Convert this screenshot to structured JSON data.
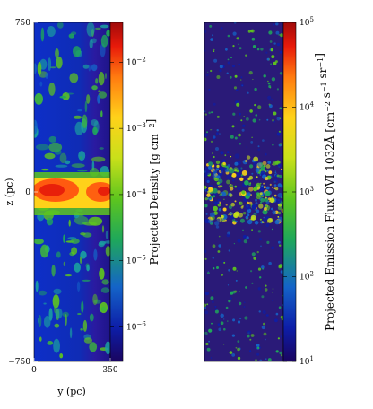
{
  "chart_data": [
    {
      "type": "heatmap",
      "panel": "left",
      "quantity": "projected density",
      "xlabel": "y (pc)",
      "ylabel": "z (pc)",
      "xlim": [
        0,
        350
      ],
      "ylim": [
        -750,
        750
      ],
      "x_ticks": [
        {
          "value": 0,
          "label": "0"
        },
        {
          "value": 350,
          "label": "350"
        }
      ],
      "y_ticks": [
        {
          "value": 750,
          "label": "750"
        },
        {
          "value": 0,
          "label": "0"
        },
        {
          "value": -750,
          "label": "-750"
        }
      ],
      "colorbar": {
        "label": "Projected Density [g cm^-2]",
        "scale": "log",
        "range": [
          3e-07,
          0.04
        ],
        "ticks": [
          {
            "value": 0.01,
            "label": "10^-2"
          },
          {
            "value": 0.001,
            "label": "10^-3"
          },
          {
            "value": 0.0001,
            "label": "10^-4"
          },
          {
            "value": 1e-05,
            "label": "10^-5"
          },
          {
            "value": 1e-06,
            "label": "10^-6"
          }
        ]
      },
      "colormap": [
        "#1a0560",
        "#0d1ea8",
        "#1464c8",
        "#1fa85a",
        "#5ec51e",
        "#c9e01a",
        "#ffd21a",
        "#ff7a10",
        "#e81a0a",
        "#a00a0a"
      ]
    },
    {
      "type": "heatmap",
      "panel": "right",
      "quantity": "projected OVI 1032Å emission flux",
      "xlabel": "",
      "ylabel": "",
      "colorbar": {
        "label": "Projected Emission Flux OVI 1032Å [cm^-2 s^-1 sr^-1]",
        "scale": "log",
        "range": [
          10,
          100000
        ],
        "ticks": [
          {
            "value": 100000,
            "label": "10^5"
          },
          {
            "value": 10000,
            "label": "10^4"
          },
          {
            "value": 1000,
            "label": "10^3"
          },
          {
            "value": 100,
            "label": "10^2"
          },
          {
            "value": 10,
            "label": "10^1"
          }
        ]
      },
      "colormap": [
        "#1a0560",
        "#0d1ea8",
        "#1464c8",
        "#1fa85a",
        "#5ec51e",
        "#c9e01a",
        "#ffd21a",
        "#ff7a10",
        "#e81a0a",
        "#a00a0a"
      ]
    }
  ]
}
